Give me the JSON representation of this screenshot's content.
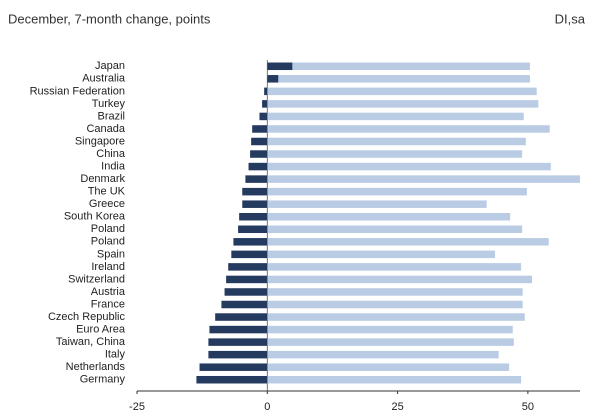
{
  "chart_data": {
    "type": "bar",
    "orientation": "horizontal",
    "categories": [
      "Japan",
      "Australia",
      "Russian Federation",
      "Turkey",
      "Brazil",
      "Canada",
      "Singapore",
      "China",
      "India",
      "Denmark",
      "The UK",
      "Greece",
      "South Korea",
      "Poland",
      "Poland",
      "Spain",
      "Ireland",
      "Switzerland",
      "Austria",
      "France",
      "Czech Republic",
      "Euro Area",
      "Taiwan, China",
      "Italy",
      "Netherlands",
      "Germany"
    ],
    "series": [
      {
        "name": "December, 7-month change, points",
        "color": "#243a5e",
        "values": [
          4.8,
          2.1,
          -0.6,
          -1,
          -1.5,
          -2.9,
          -3.1,
          -3.3,
          -3.6,
          -4.2,
          -4.8,
          -4.8,
          -5.4,
          -5.6,
          -6.5,
          -6.9,
          -7.5,
          -7.9,
          -8.2,
          -8.8,
          -10,
          -11.1,
          -11.3,
          -11.3,
          -13,
          -13.6
        ]
      },
      {
        "name": "DI,sa",
        "color": "#b9cce4",
        "values": [
          50.4,
          50.4,
          51.7,
          52,
          49.2,
          54.2,
          49.6,
          48.9,
          54.4,
          60,
          49.8,
          42.1,
          46.6,
          48.9,
          54,
          43.7,
          48.7,
          50.8,
          49,
          49,
          49.4,
          47.1,
          47.3,
          44.4,
          46.4,
          48.7
        ]
      }
    ],
    "xlim": [
      -25,
      60
    ],
    "xticks": [
      -25,
      0,
      25,
      50
    ]
  }
}
